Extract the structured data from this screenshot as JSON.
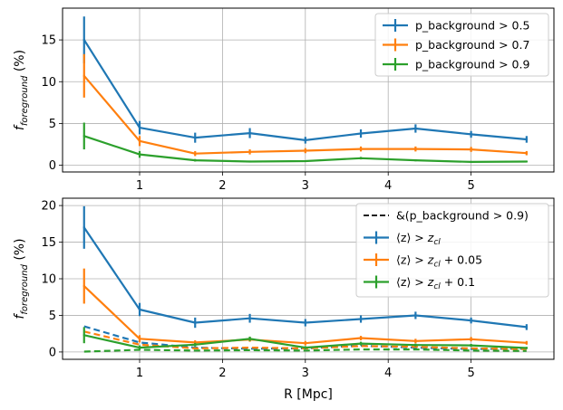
{
  "chart_data": [
    {
      "type": "line",
      "xlabel": "",
      "ylabel": "f_foreground (%)",
      "ylabel_main": "f",
      "ylabel_sub": "foreground",
      "ylabel_unit": " (%)",
      "xlim": [
        0.07,
        6.0
      ],
      "ylim": [
        -0.8,
        18.8
      ],
      "xticks": [
        1,
        2,
        3,
        4,
        5
      ],
      "yticks": [
        0,
        5,
        10,
        15
      ],
      "grid": true,
      "legend_position": "upper right",
      "x": [
        0.33,
        1.0,
        1.67,
        2.33,
        3.0,
        3.67,
        4.33,
        5.0,
        5.67
      ],
      "series": [
        {
          "name": "p_background > 0.5",
          "color": "#1f77b4",
          "style": "solid",
          "values": [
            15.0,
            4.5,
            3.3,
            3.85,
            3.0,
            3.8,
            4.4,
            3.7,
            3.1
          ],
          "errors": [
            2.8,
            0.8,
            0.6,
            0.6,
            0.4,
            0.5,
            0.5,
            0.4,
            0.4
          ]
        },
        {
          "name": "p_background > 0.7",
          "color": "#ff7f0e",
          "style": "solid",
          "values": [
            10.7,
            2.9,
            1.4,
            1.6,
            1.75,
            1.95,
            1.95,
            1.9,
            1.45
          ],
          "errors": [
            2.6,
            0.6,
            0.3,
            0.3,
            0.3,
            0.3,
            0.3,
            0.3,
            0.25
          ]
        },
        {
          "name": "p_background > 0.9",
          "color": "#2ca02c",
          "style": "solid",
          "values": [
            3.5,
            1.3,
            0.6,
            0.45,
            0.5,
            0.85,
            0.6,
            0.4,
            0.45
          ],
          "errors": [
            1.6,
            0.4,
            0.15,
            0.1,
            0.1,
            0.15,
            0.12,
            0.1,
            0.1
          ]
        }
      ]
    },
    {
      "type": "line",
      "xlabel": "R [Mpc]",
      "ylabel": "f_foreground (%)",
      "ylabel_main": "f",
      "ylabel_sub": "foreground",
      "ylabel_unit": " (%)",
      "xlim": [
        0.07,
        6.0
      ],
      "ylim": [
        -1.0,
        21.0
      ],
      "xticks": [
        1,
        2,
        3,
        4,
        5
      ],
      "yticks": [
        0,
        5,
        10,
        15,
        20
      ],
      "grid": true,
      "legend_position": "upper right",
      "x": [
        0.33,
        1.0,
        1.67,
        2.33,
        3.0,
        3.67,
        4.33,
        5.0,
        5.67
      ],
      "series": [
        {
          "name": "⟨z⟩ > z_cl",
          "color": "#1f77b4",
          "style": "solid",
          "values": [
            17.0,
            5.8,
            4.0,
            4.6,
            4.0,
            4.5,
            5.0,
            4.3,
            3.4
          ],
          "errors": [
            2.9,
            0.9,
            0.7,
            0.6,
            0.5,
            0.5,
            0.5,
            0.4,
            0.4
          ]
        },
        {
          "name": "⟨z⟩ > z_cl + 0.05",
          "color": "#ff7f0e",
          "style": "solid",
          "values": [
            9.0,
            1.8,
            1.3,
            1.7,
            1.2,
            1.9,
            1.5,
            1.75,
            1.25
          ],
          "errors": [
            2.4,
            0.5,
            0.3,
            0.3,
            0.3,
            0.3,
            0.3,
            0.3,
            0.25
          ]
        },
        {
          "name": "⟨z⟩ > z_cl + 0.1",
          "color": "#2ca02c",
          "style": "solid",
          "values": [
            2.3,
            0.6,
            1.0,
            1.8,
            0.6,
            1.15,
            0.95,
            0.9,
            0.55
          ],
          "errors": [
            1.1,
            0.3,
            0.25,
            0.3,
            0.2,
            0.25,
            0.2,
            0.2,
            0.15
          ]
        },
        {
          "name": "",
          "color": "#1f77b4",
          "style": "dashed",
          "values": [
            3.5,
            1.3,
            0.6,
            0.45,
            0.5,
            0.85,
            0.6,
            0.4,
            0.45
          ]
        },
        {
          "name": "",
          "color": "#ff7f0e",
          "style": "dashed",
          "values": [
            2.8,
            1.0,
            0.5,
            0.6,
            0.5,
            0.8,
            0.7,
            0.5,
            0.4
          ]
        },
        {
          "name": "",
          "color": "#2ca02c",
          "style": "dashed",
          "values": [
            0.05,
            0.3,
            0.2,
            0.25,
            0.2,
            0.35,
            0.35,
            0.2,
            0.15
          ]
        }
      ],
      "legend_extra": {
        "name": "&(p_background > 0.9)",
        "color": "#000000",
        "style": "dashed"
      },
      "legend_math": [
        {
          "lhs": "⟨z⟩ > ",
          "z": "z",
          "sub": "cl",
          "tail": ""
        },
        {
          "lhs": "⟨z⟩ > ",
          "z": "z",
          "sub": "cl",
          "tail": " + 0.05"
        },
        {
          "lhs": "⟨z⟩ > ",
          "z": "z",
          "sub": "cl",
          "tail": " + 0.1"
        }
      ]
    }
  ]
}
